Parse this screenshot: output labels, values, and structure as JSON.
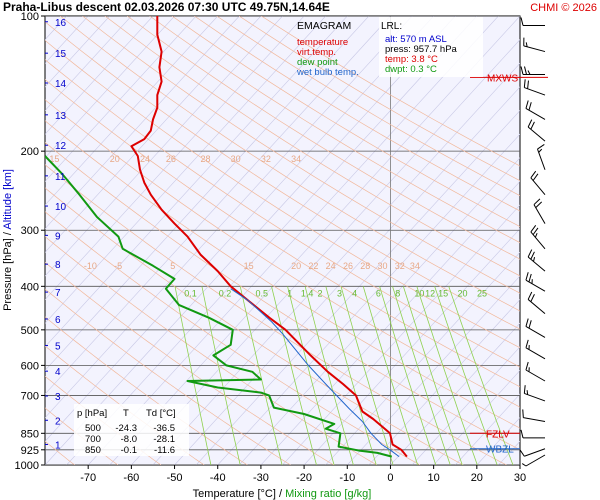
{
  "header": {
    "title": "Praha-Libus   descent   02.03.2026 07:30 UTC  49.75N,14.64E",
    "copyright": "CHMI © 2026"
  },
  "legend": {
    "title": "EMAGRAM",
    "items": [
      {
        "label": "temperature",
        "color": "#dd0000"
      },
      {
        "label": "virt.temp.",
        "color": "#dd0000"
      },
      {
        "label": "dew point",
        "color": "#119911"
      },
      {
        "label": "wet bulb temp.",
        "color": "#2266cc"
      }
    ]
  },
  "lrl": {
    "title": "LRL:",
    "lines": [
      {
        "text": "alt: 570 m ASL",
        "color": "#0000cc"
      },
      {
        "text": "press: 957.7 hPa",
        "color": "#000000"
      },
      {
        "text": "temp: 3.8 °C",
        "color": "#dd0000"
      },
      {
        "text": "dwpt: 0.3 °C",
        "color": "#119911"
      }
    ]
  },
  "levels_table": {
    "headers": [
      "p [hPa]",
      "T",
      "Td [°C]"
    ],
    "rows": [
      [
        "500",
        "-24.3",
        "-36.5"
      ],
      [
        "700",
        "-8.0",
        "-28.1"
      ],
      [
        "850",
        "-0.1",
        "-11.6"
      ]
    ]
  },
  "markers": [
    {
      "label": "MXWS",
      "pressure": 137,
      "color": "#dd0000"
    },
    {
      "label": "FZLV",
      "pressure": 850,
      "color": "#dd0000"
    },
    {
      "label": "WBZL",
      "pressure": 920,
      "color": "#2266cc"
    }
  ],
  "chart_data": {
    "type": "line",
    "title": "Praha-Libus   descent   02.03.2026 07:30 UTC  49.75N,14.64E",
    "xlabel": "Temperature [°C]",
    "xlabel_secondary": "Mixing ratio [g/kg]",
    "ylabel": "Pressure [hPa]",
    "ylabel_secondary": "Altitude [km]",
    "y_scale": "log",
    "xlim": [
      -80,
      30
    ],
    "ylim": [
      1000,
      100
    ],
    "x_ticks": [
      -70,
      -60,
      -50,
      -40,
      -30,
      -20,
      -10,
      0,
      10,
      20,
      30
    ],
    "y_ticks": [
      100,
      200,
      300,
      400,
      500,
      600,
      700,
      850,
      925,
      1000
    ],
    "altitude_ticks": [
      {
        "km": 1,
        "p": 900
      },
      {
        "km": 2,
        "p": 795
      },
      {
        "km": 3,
        "p": 702
      },
      {
        "km": 4,
        "p": 618
      },
      {
        "km": 5,
        "p": 542
      },
      {
        "km": 6,
        "p": 473
      },
      {
        "km": 7,
        "p": 412
      },
      {
        "km": 8,
        "p": 357
      },
      {
        "km": 9,
        "p": 308
      },
      {
        "km": 10,
        "p": 265
      },
      {
        "km": 11,
        "p": 227
      },
      {
        "km": 12,
        "p": 194
      },
      {
        "km": 13,
        "p": 166
      },
      {
        "km": 14,
        "p": 141
      },
      {
        "km": 15,
        "p": 121
      },
      {
        "km": 16,
        "p": 103
      }
    ],
    "mixing_ratio_labels": [
      "0.1",
      "0.2",
      "0.5",
      "1",
      "1.4",
      "2",
      "3",
      "4",
      "6",
      "8",
      "10",
      "12",
      "15",
      "20",
      "25"
    ],
    "mixing_ratio_values": [
      0.1,
      0.2,
      0.5,
      1,
      1.4,
      2,
      3,
      4,
      6,
      8,
      10,
      12,
      15,
      20,
      25
    ],
    "adiabat_labels_upper": [
      "15",
      "20",
      "24",
      "26",
      "28",
      "30",
      "32",
      "34"
    ],
    "adiabat_labels_lower": [
      "-10",
      "-5",
      "5",
      "15",
      "20",
      "22",
      "24",
      "26",
      "28",
      "30",
      "32",
      "34"
    ],
    "grid": true,
    "series": [
      {
        "name": "temperature",
        "color": "#dd0000",
        "points": [
          [
            3.8,
            957.7
          ],
          [
            2.5,
            925
          ],
          [
            0.5,
            900
          ],
          [
            -0.1,
            850
          ],
          [
            -2,
            820
          ],
          [
            -4,
            790
          ],
          [
            -6.5,
            760
          ],
          [
            -8,
            700
          ],
          [
            -11,
            660
          ],
          [
            -14.5,
            620
          ],
          [
            -18.5,
            570
          ],
          [
            -24.3,
            500
          ],
          [
            -28,
            470
          ],
          [
            -33,
            430
          ],
          [
            -37,
            400
          ],
          [
            -40,
            370
          ],
          [
            -44,
            340
          ],
          [
            -47,
            310
          ],
          [
            -50,
            290
          ],
          [
            -53,
            270
          ],
          [
            -55.5,
            250
          ],
          [
            -57,
            235
          ],
          [
            -58,
            220
          ],
          [
            -58.5,
            205
          ],
          [
            -60,
            195
          ],
          [
            -57,
            188
          ],
          [
            -55.5,
            180
          ],
          [
            -55,
            170
          ],
          [
            -54,
            160
          ],
          [
            -54,
            150
          ],
          [
            -53,
            140
          ],
          [
            -53.5,
            130
          ],
          [
            -53,
            120
          ],
          [
            -54,
            110
          ],
          [
            -54,
            100
          ]
        ]
      },
      {
        "name": "wet bulb temp.",
        "color": "#2266cc",
        "points": [
          [
            2,
            957.7
          ],
          [
            0.2,
            930
          ],
          [
            -2,
            900
          ],
          [
            -4.5,
            850
          ],
          [
            -6.5,
            800
          ],
          [
            -9.5,
            750
          ],
          [
            -12.5,
            700
          ],
          [
            -15,
            660
          ],
          [
            -19,
            600
          ],
          [
            -25,
            510
          ],
          [
            -27.5,
            480
          ],
          [
            -33,
            430
          ],
          [
            -37,
            405
          ]
        ]
      },
      {
        "name": "dew point",
        "color": "#119911",
        "points": [
          [
            0.3,
            957.7
          ],
          [
            -3,
            940
          ],
          [
            -7,
            930
          ],
          [
            -12,
            910
          ],
          [
            -11.6,
            850
          ],
          [
            -15,
            830
          ],
          [
            -13,
            810
          ],
          [
            -20,
            770
          ],
          [
            -27,
            745
          ],
          [
            -28.1,
            700
          ],
          [
            -30,
            690
          ],
          [
            -40,
            672
          ],
          [
            -47,
            650
          ],
          [
            -30,
            645
          ],
          [
            -32,
            620
          ],
          [
            -38,
            600
          ],
          [
            -41,
            570
          ],
          [
            -37,
            540
          ],
          [
            -36.5,
            500
          ],
          [
            -42,
            470
          ],
          [
            -49,
            440
          ],
          [
            -52,
            405
          ],
          [
            -50,
            385
          ],
          [
            -55,
            360
          ],
          [
            -62,
            330
          ],
          [
            -63,
            310
          ],
          [
            -68,
            280
          ],
          [
            -72,
            250
          ],
          [
            -76,
            225
          ],
          [
            -80,
            205
          ]
        ]
      }
    ],
    "wind_barbs": [
      {
        "p": 105,
        "dir": 270,
        "spd": 10
      },
      {
        "p": 120,
        "dir": 285,
        "spd": 15
      },
      {
        "p": 135,
        "dir": 270,
        "spd": 25
      },
      {
        "p": 150,
        "dir": 290,
        "spd": 20
      },
      {
        "p": 170,
        "dir": 300,
        "spd": 20
      },
      {
        "p": 190,
        "dir": 310,
        "spd": 20
      },
      {
        "p": 220,
        "dir": 340,
        "spd": 15
      },
      {
        "p": 250,
        "dir": 320,
        "spd": 20
      },
      {
        "p": 290,
        "dir": 330,
        "spd": 20
      },
      {
        "p": 330,
        "dir": 320,
        "spd": 25
      },
      {
        "p": 370,
        "dir": 310,
        "spd": 25
      },
      {
        "p": 410,
        "dir": 300,
        "spd": 25
      },
      {
        "p": 460,
        "dir": 310,
        "spd": 20
      },
      {
        "p": 520,
        "dir": 300,
        "spd": 20
      },
      {
        "p": 580,
        "dir": 300,
        "spd": 15
      },
      {
        "p": 650,
        "dir": 300,
        "spd": 15
      },
      {
        "p": 720,
        "dir": 290,
        "spd": 15
      },
      {
        "p": 800,
        "dir": 280,
        "spd": 10
      },
      {
        "p": 870,
        "dir": 270,
        "spd": 10
      },
      {
        "p": 920,
        "dir": 250,
        "spd": 10
      },
      {
        "p": 950,
        "dir": 240,
        "spd": 5
      }
    ]
  }
}
